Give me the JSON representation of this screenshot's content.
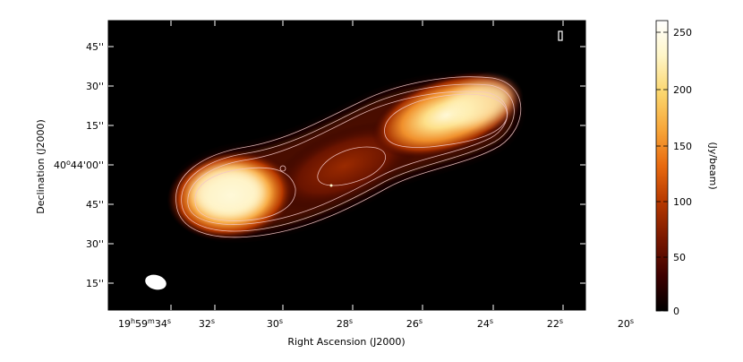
{
  "figure": {
    "xlabel": "Right Ascension (J2000)",
    "ylabel": "Declination (J2000)",
    "x_ticks": [
      {
        "h": "19",
        "m": "59",
        "s": "34"
      },
      {
        "s": "32"
      },
      {
        "s": "30"
      },
      {
        "s": "28"
      },
      {
        "s": "26"
      },
      {
        "s": "24"
      },
      {
        "s": "22"
      },
      {
        "s": "20"
      }
    ],
    "y_ticks": [
      {
        "text": "45''"
      },
      {
        "text": "30''"
      },
      {
        "text": "15''"
      },
      {
        "deg": "40",
        "arcmin": "44",
        "arcsec": "00''"
      },
      {
        "text": "45''"
      },
      {
        "text": "30''"
      },
      {
        "text": "15''"
      }
    ],
    "colorbar": {
      "label": "(Jy/beam)",
      "ticks": [
        "250",
        "200",
        "150",
        "100",
        "50",
        "0"
      ]
    },
    "colors": {
      "background": "#000000",
      "cmap": [
        "#000000",
        "#3d0000",
        "#7a1800",
        "#b83a00",
        "#e86a10",
        "#f7a437",
        "#fbd66d",
        "#fff6c8",
        "#ffffff"
      ],
      "contour": "#f4c7c7"
    }
  }
}
